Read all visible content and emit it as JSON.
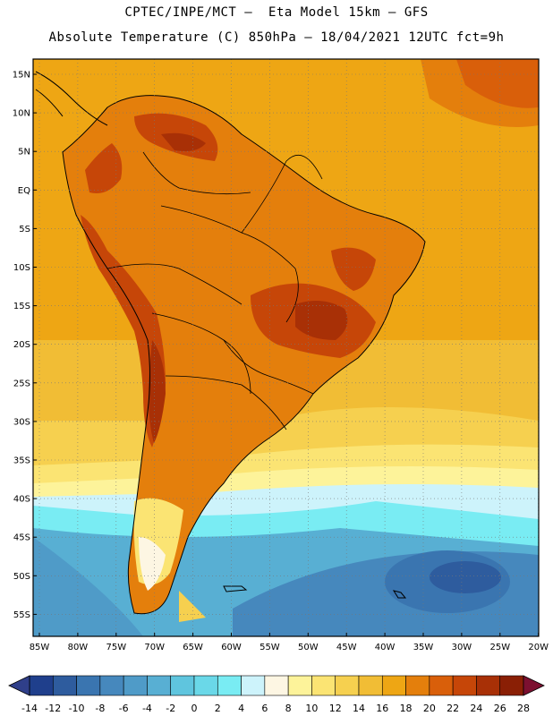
{
  "header": {
    "line1": "CPTEC/INPE/MCT –  Eta Model 15km – GFS",
    "line2": "Absolute Temperature (C) 850hPa – 18/04/2021 12UTC fct=9h"
  },
  "map": {
    "lat_labels": [
      "15N",
      "10N",
      "5N",
      "EQ",
      "5S",
      "10S",
      "15S",
      "20S",
      "25S",
      "30S",
      "35S",
      "40S",
      "45S",
      "50S",
      "55S"
    ],
    "lon_labels": [
      "85W",
      "80W",
      "75W",
      "70W",
      "65W",
      "60W",
      "55W",
      "50W",
      "45W",
      "40W",
      "35W",
      "30W",
      "25W",
      "20W"
    ]
  },
  "colorbar": {
    "labels": [
      "-14",
      "-12",
      "-10",
      "-8",
      "-6",
      "-4",
      "-2",
      "0",
      "2",
      "4",
      "6",
      "8",
      "10",
      "12",
      "14",
      "16",
      "18",
      "20",
      "22",
      "24",
      "26",
      "28"
    ],
    "colors": [
      "#1f3f8c",
      "#2e5c9e",
      "#3a75b0",
      "#4688bd",
      "#4f9bc8",
      "#58afd3",
      "#5fc5de",
      "#6ad8e8",
      "#79ecf3",
      "#cdf3fb",
      "#fdf6e3",
      "#fdf39a",
      "#fbe473",
      "#f6d04f",
      "#f1bd35",
      "#eea614",
      "#e47f0c",
      "#d95f0a",
      "#c64608",
      "#a83006",
      "#8a1f05"
    ]
  }
}
